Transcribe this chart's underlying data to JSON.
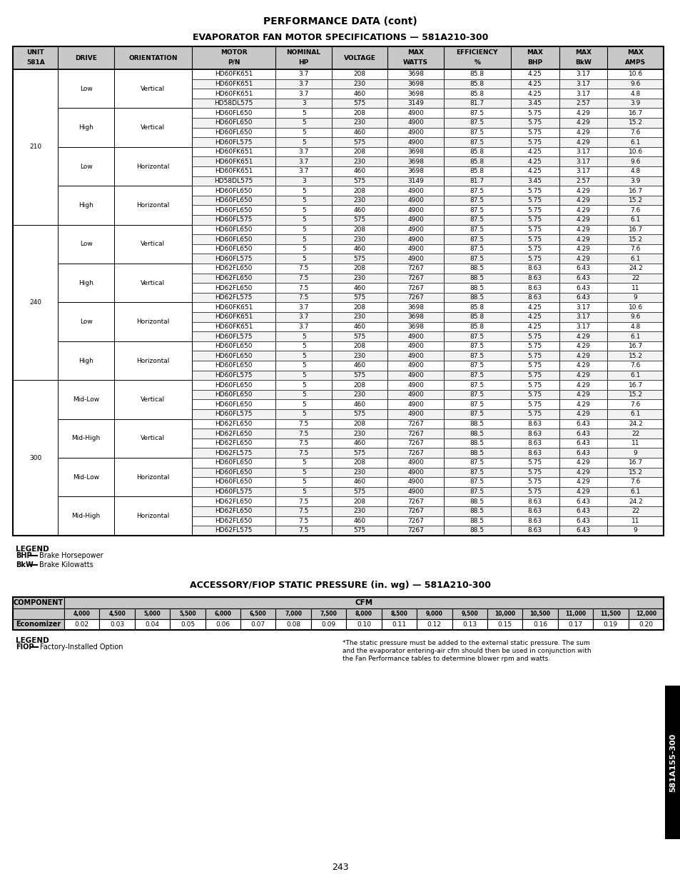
{
  "title1": "PERFORMANCE DATA (cont)",
  "title2": "EVAPORATOR FAN MOTOR SPECIFICATIONS — 581A210-300",
  "col_headers": [
    "UNIT\n581A",
    "DRIVE",
    "ORIENTATION",
    "MOTOR\nP/N",
    "NOMINAL\nHP",
    "VOLTAGE",
    "MAX\nWATTS",
    "EFFICIENCY\n%",
    "MAX\nBHP",
    "MAX\nBkW",
    "MAX\nAMPS"
  ],
  "main_table": [
    [
      "210",
      "Low",
      "Vertical",
      "HD60FK651",
      "3.7",
      "208",
      "3698",
      "85.8",
      "4.25",
      "3.17",
      "10.6"
    ],
    [
      "210",
      "Low",
      "Vertical",
      "HD60FK651",
      "3.7",
      "230",
      "3698",
      "85.8",
      "4.25",
      "3.17",
      "9.6"
    ],
    [
      "210",
      "Low",
      "Vertical",
      "HD60FK651",
      "3.7",
      "460",
      "3698",
      "85.8",
      "4.25",
      "3.17",
      "4.8"
    ],
    [
      "210",
      "Low",
      "Vertical",
      "HD58DL575",
      "3",
      "575",
      "3149",
      "81.7",
      "3.45",
      "2.57",
      "3.9"
    ],
    [
      "210",
      "High",
      "Vertical",
      "HD60FL650",
      "5",
      "208",
      "4900",
      "87.5",
      "5.75",
      "4.29",
      "16.7"
    ],
    [
      "210",
      "High",
      "Vertical",
      "HD60FL650",
      "5",
      "230",
      "4900",
      "87.5",
      "5.75",
      "4.29",
      "15.2"
    ],
    [
      "210",
      "High",
      "Vertical",
      "HD60FL650",
      "5",
      "460",
      "4900",
      "87.5",
      "5.75",
      "4.29",
      "7.6"
    ],
    [
      "210",
      "High",
      "Vertical",
      "HD60FL575",
      "5",
      "575",
      "4900",
      "87.5",
      "5.75",
      "4.29",
      "6.1"
    ],
    [
      "210",
      "Low",
      "Horizontal",
      "HD60FK651",
      "3.7",
      "208",
      "3698",
      "85.8",
      "4.25",
      "3.17",
      "10.6"
    ],
    [
      "210",
      "Low",
      "Horizontal",
      "HD60FK651",
      "3.7",
      "230",
      "3698",
      "85.8",
      "4.25",
      "3.17",
      "9.6"
    ],
    [
      "210",
      "Low",
      "Horizontal",
      "HD60FK651",
      "3.7",
      "460",
      "3698",
      "85.8",
      "4.25",
      "3.17",
      "4.8"
    ],
    [
      "210",
      "Low",
      "Horizontal",
      "HD58DL575",
      "3",
      "575",
      "3149",
      "81.7",
      "3.45",
      "2.57",
      "3.9"
    ],
    [
      "210",
      "High",
      "Horizontal",
      "HD60FL650",
      "5",
      "208",
      "4900",
      "87.5",
      "5.75",
      "4.29",
      "16.7"
    ],
    [
      "210",
      "High",
      "Horizontal",
      "HD60FL650",
      "5",
      "230",
      "4900",
      "87.5",
      "5.75",
      "4.29",
      "15.2"
    ],
    [
      "210",
      "High",
      "Horizontal",
      "HD60FL650",
      "5",
      "460",
      "4900",
      "87.5",
      "5.75",
      "4.29",
      "7.6"
    ],
    [
      "210",
      "High",
      "Horizontal",
      "HD60FL575",
      "5",
      "575",
      "4900",
      "87.5",
      "5.75",
      "4.29",
      "6.1"
    ],
    [
      "240",
      "Low",
      "Vertical",
      "HD60FL650",
      "5",
      "208",
      "4900",
      "87.5",
      "5.75",
      "4.29",
      "16.7"
    ],
    [
      "240",
      "Low",
      "Vertical",
      "HD60FL650",
      "5",
      "230",
      "4900",
      "87.5",
      "5.75",
      "4.29",
      "15.2"
    ],
    [
      "240",
      "Low",
      "Vertical",
      "HD60FL650",
      "5",
      "460",
      "4900",
      "87.5",
      "5.75",
      "4.29",
      "7.6"
    ],
    [
      "240",
      "Low",
      "Vertical",
      "HD60FL575",
      "5",
      "575",
      "4900",
      "87.5",
      "5.75",
      "4.29",
      "6.1"
    ],
    [
      "240",
      "High",
      "Vertical",
      "HD62FL650",
      "7.5",
      "208",
      "7267",
      "88.5",
      "8.63",
      "6.43",
      "24.2"
    ],
    [
      "240",
      "High",
      "Vertical",
      "HD62FL650",
      "7.5",
      "230",
      "7267",
      "88.5",
      "8.63",
      "6.43",
      "22"
    ],
    [
      "240",
      "High",
      "Vertical",
      "HD62FL650",
      "7.5",
      "460",
      "7267",
      "88.5",
      "8.63",
      "6.43",
      "11"
    ],
    [
      "240",
      "High",
      "Vertical",
      "HD62FL575",
      "7.5",
      "575",
      "7267",
      "88.5",
      "8.63",
      "6.43",
      "9"
    ],
    [
      "240",
      "Low",
      "Horizontal",
      "HD60FK651",
      "3.7",
      "208",
      "3698",
      "85.8",
      "4.25",
      "3.17",
      "10.6"
    ],
    [
      "240",
      "Low",
      "Horizontal",
      "HD60FK651",
      "3.7",
      "230",
      "3698",
      "85.8",
      "4.25",
      "3.17",
      "9.6"
    ],
    [
      "240",
      "Low",
      "Horizontal",
      "HD60FK651",
      "3.7",
      "460",
      "3698",
      "85.8",
      "4.25",
      "3.17",
      "4.8"
    ],
    [
      "240",
      "Low",
      "Horizontal",
      "HD60FL575",
      "5",
      "575",
      "4900",
      "87.5",
      "5.75",
      "4.29",
      "6.1"
    ],
    [
      "240",
      "High",
      "Horizontal",
      "HD60FL650",
      "5",
      "208",
      "4900",
      "87.5",
      "5.75",
      "4.29",
      "16.7"
    ],
    [
      "240",
      "High",
      "Horizontal",
      "HD60FL650",
      "5",
      "230",
      "4900",
      "87.5",
      "5.75",
      "4.29",
      "15.2"
    ],
    [
      "240",
      "High",
      "Horizontal",
      "HD60FL650",
      "5",
      "460",
      "4900",
      "87.5",
      "5.75",
      "4.29",
      "7.6"
    ],
    [
      "240",
      "High",
      "Horizontal",
      "HD60FL575",
      "5",
      "575",
      "4900",
      "87.5",
      "5.75",
      "4.29",
      "6.1"
    ],
    [
      "300",
      "Mid-Low",
      "Vertical",
      "HD60FL650",
      "5",
      "208",
      "4900",
      "87.5",
      "5.75",
      "4.29",
      "16.7"
    ],
    [
      "300",
      "Mid-Low",
      "Vertical",
      "HD60FL650",
      "5",
      "230",
      "4900",
      "87.5",
      "5.75",
      "4.29",
      "15.2"
    ],
    [
      "300",
      "Mid-Low",
      "Vertical",
      "HD60FL650",
      "5",
      "460",
      "4900",
      "87.5",
      "5.75",
      "4.29",
      "7.6"
    ],
    [
      "300",
      "Mid-Low",
      "Vertical",
      "HD60FL575",
      "5",
      "575",
      "4900",
      "87.5",
      "5.75",
      "4.29",
      "6.1"
    ],
    [
      "300",
      "Mid-High",
      "Vertical",
      "HD62FL650",
      "7.5",
      "208",
      "7267",
      "88.5",
      "8.63",
      "6.43",
      "24.2"
    ],
    [
      "300",
      "Mid-High",
      "Vertical",
      "HD62FL650",
      "7.5",
      "230",
      "7267",
      "88.5",
      "8.63",
      "6.43",
      "22"
    ],
    [
      "300",
      "Mid-High",
      "Vertical",
      "HD62FL650",
      "7.5",
      "460",
      "7267",
      "88.5",
      "8.63",
      "6.43",
      "11"
    ],
    [
      "300",
      "Mid-High",
      "Vertical",
      "HD62FL575",
      "7.5",
      "575",
      "7267",
      "88.5",
      "8.63",
      "6.43",
      "9"
    ],
    [
      "300",
      "Mid-Low",
      "Horizontal",
      "HD60FL650",
      "5",
      "208",
      "4900",
      "87.5",
      "5.75",
      "4.29",
      "16.7"
    ],
    [
      "300",
      "Mid-Low",
      "Horizontal",
      "HD60FL650",
      "5",
      "230",
      "4900",
      "87.5",
      "5.75",
      "4.29",
      "15.2"
    ],
    [
      "300",
      "Mid-Low",
      "Horizontal",
      "HD60FL650",
      "5",
      "460",
      "4900",
      "87.5",
      "5.75",
      "4.29",
      "7.6"
    ],
    [
      "300",
      "Mid-Low",
      "Horizontal",
      "HD60FL575",
      "5",
      "575",
      "4900",
      "87.5",
      "5.75",
      "4.29",
      "6.1"
    ],
    [
      "300",
      "Mid-High",
      "Horizontal",
      "HD62FL650",
      "7.5",
      "208",
      "7267",
      "88.5",
      "8.63",
      "6.43",
      "24.2"
    ],
    [
      "300",
      "Mid-High",
      "Horizontal",
      "HD62FL650",
      "7.5",
      "230",
      "7267",
      "88.5",
      "8.63",
      "6.43",
      "22"
    ],
    [
      "300",
      "Mid-High",
      "Horizontal",
      "HD62FL650",
      "7.5",
      "460",
      "7267",
      "88.5",
      "8.63",
      "6.43",
      "11"
    ],
    [
      "300",
      "Mid-High",
      "Horizontal",
      "HD62FL575",
      "7.5",
      "575",
      "7267",
      "88.5",
      "8.63",
      "6.43",
      "9"
    ]
  ],
  "legend1_title": "LEGEND",
  "legend1_items": [
    [
      "BHP",
      "Brake Horsepower"
    ],
    [
      "BkW",
      "Brake Kilowatts"
    ]
  ],
  "title3": "ACCESSORY/FIOP STATIC PRESSURE (in. wg) — 581A210-300",
  "table2_comp_header": "COMPONENT",
  "table2_cfm_header": "CFM",
  "table2_cfm_values": [
    "4,000",
    "4,500",
    "5,000",
    "5,500",
    "6,000",
    "6,500",
    "7,000",
    "7,500",
    "8,000",
    "8,500",
    "9,000",
    "9,500",
    "10,000",
    "10,500",
    "11,000",
    "11,500",
    "12,000"
  ],
  "table2_rows": [
    [
      "Economizer",
      "0.02",
      "0.03",
      "0.04",
      "0.05",
      "0.06",
      "0.07",
      "0.08",
      "0.09",
      "0.10",
      "0.11",
      "0.12",
      "0.13",
      "0.15",
      "0.16",
      "0.17",
      "0.19",
      "0.20"
    ]
  ],
  "legend2_title": "LEGEND",
  "legend2_items": [
    [
      "FIOP",
      "Factory-Installed Option"
    ]
  ],
  "footnote_lines": [
    "*The static pressure must be added to the external static pressure. The sum",
    "and the evaporator entering-air cfm should then be used in conjunction with",
    "the Fan Performance tables to determine blower rpm and watts."
  ],
  "page_number": "243",
  "sidebar_text": "581A155-300"
}
